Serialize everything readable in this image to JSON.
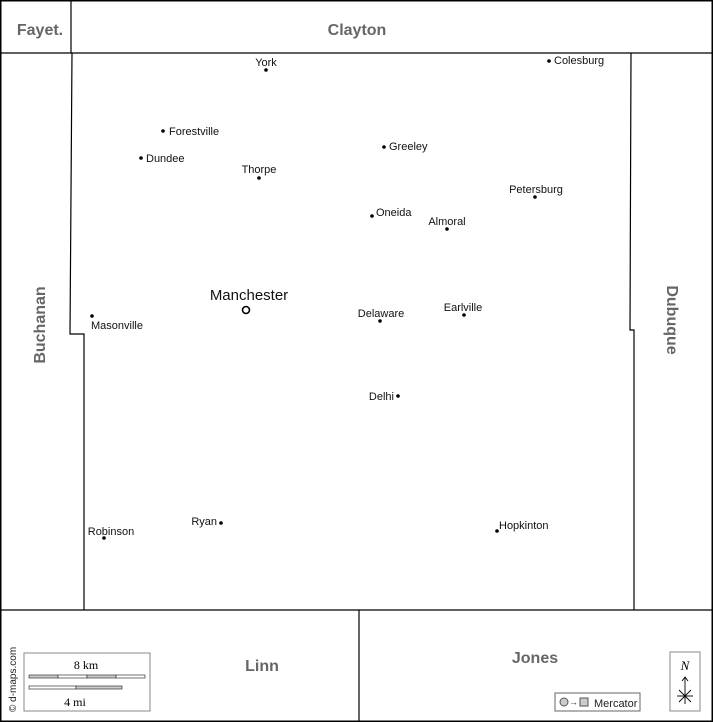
{
  "neighbors": {
    "fayette": "Fayet.",
    "clayton": "Clayton",
    "buchanan": "Buchanan",
    "dubuque": "Dubuque",
    "linn": "Linn",
    "jones": "Jones"
  },
  "seat": {
    "name": "Manchester"
  },
  "cities": [
    {
      "name": "York"
    },
    {
      "name": "Colesburg"
    },
    {
      "name": "Forestville"
    },
    {
      "name": "Dundee"
    },
    {
      "name": "Greeley"
    },
    {
      "name": "Thorpe"
    },
    {
      "name": "Petersburg"
    },
    {
      "name": "Oneida"
    },
    {
      "name": "Almoral"
    },
    {
      "name": "Masonville"
    },
    {
      "name": "Delaware"
    },
    {
      "name": "Earlville"
    },
    {
      "name": "Delhi"
    },
    {
      "name": "Robinson"
    },
    {
      "name": "Ryan"
    },
    {
      "name": "Hopkinton"
    }
  ],
  "scale": {
    "km_label": "8 km",
    "mi_label": "4 mi"
  },
  "credit": "© d-maps.com",
  "projection": "Mercator",
  "north": "N",
  "colors": {
    "county_label": "#666666",
    "border": "#000000",
    "bar_fill": "#cccccc"
  }
}
